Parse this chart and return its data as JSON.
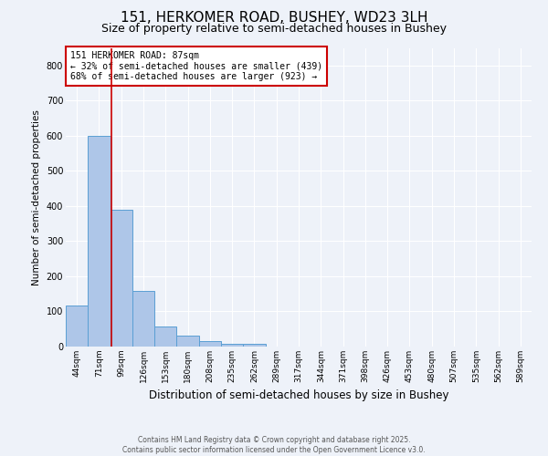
{
  "title1": "151, HERKOMER ROAD, BUSHEY, WD23 3LH",
  "title2": "Size of property relative to semi-detached houses in Bushey",
  "xlabel": "Distribution of semi-detached houses by size in Bushey",
  "ylabel": "Number of semi-detached properties",
  "bins": [
    "44sqm",
    "71sqm",
    "99sqm",
    "126sqm",
    "153sqm",
    "180sqm",
    "208sqm",
    "235sqm",
    "262sqm",
    "289sqm",
    "317sqm",
    "344sqm",
    "371sqm",
    "398sqm",
    "426sqm",
    "453sqm",
    "480sqm",
    "507sqm",
    "535sqm",
    "562sqm",
    "589sqm"
  ],
  "values": [
    118,
    600,
    390,
    158,
    58,
    30,
    15,
    7,
    8,
    0,
    0,
    0,
    0,
    0,
    0,
    0,
    0,
    0,
    0,
    0,
    0
  ],
  "bar_color": "#aec6e8",
  "bar_edge_color": "#5a9fd4",
  "red_line_color": "#cc0000",
  "annotation_text": "151 HERKOMER ROAD: 87sqm\n← 32% of semi-detached houses are smaller (439)\n68% of semi-detached houses are larger (923) →",
  "annotation_box_color": "#ffffff",
  "annotation_box_edge": "#cc0000",
  "ylim": [
    0,
    850
  ],
  "yticks": [
    0,
    100,
    200,
    300,
    400,
    500,
    600,
    700,
    800
  ],
  "footer1": "Contains HM Land Registry data © Crown copyright and database right 2025.",
  "footer2": "Contains public sector information licensed under the Open Government Licence v3.0.",
  "bg_color": "#eef2f9",
  "grid_color": "#ffffff",
  "title1_fontsize": 11,
  "title2_fontsize": 9,
  "ylabel_fontsize": 7.5,
  "xlabel_fontsize": 8.5,
  "tick_fontsize": 6.5,
  "annotation_fontsize": 7,
  "footer_fontsize": 5.5
}
